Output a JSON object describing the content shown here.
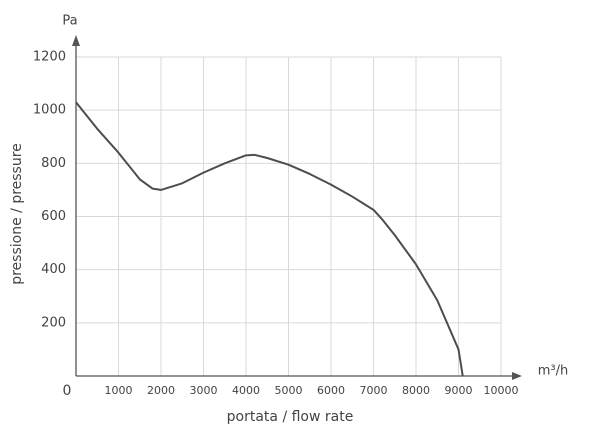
{
  "chart_data": {
    "type": "line",
    "y_unit": "Pa",
    "x_unit": "m³/h",
    "y_label": "pressione / pressure",
    "x_label": "portata / flow rate",
    "x": [
      0,
      500,
      1000,
      1200,
      1500,
      1800,
      2000,
      2500,
      3000,
      3500,
      4000,
      4200,
      4500,
      5000,
      5500,
      6000,
      6500,
      7000,
      7200,
      7500,
      8000,
      8500,
      9000,
      9100
    ],
    "series": [
      {
        "color": "#4d4d4d",
        "values": [
          1030,
          930,
          840,
          800,
          740,
          705,
          700,
          725,
          765,
          800,
          830,
          832,
          820,
          795,
          760,
          720,
          675,
          625,
          590,
          530,
          420,
          285,
          100,
          0
        ]
      }
    ],
    "xlim": [
      0,
      10000
    ],
    "ylim": [
      0,
      1200
    ],
    "xticks": [
      0,
      1000,
      2000,
      3000,
      4000,
      5000,
      6000,
      7000,
      8000,
      9000,
      10000
    ],
    "yticks": [
      200,
      400,
      600,
      800,
      1000,
      1200
    ],
    "grid": true
  }
}
